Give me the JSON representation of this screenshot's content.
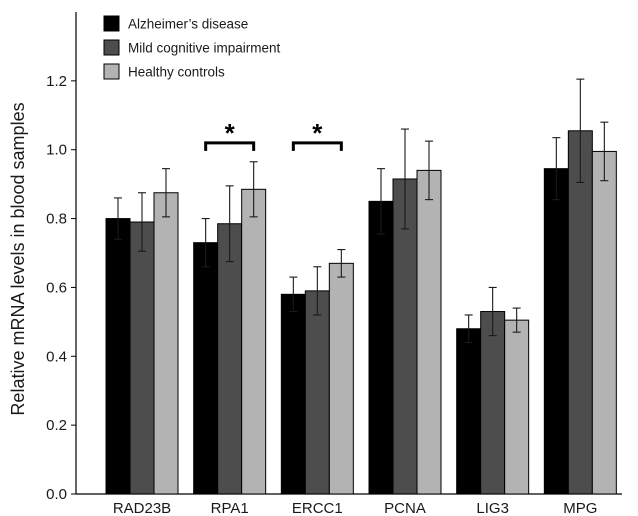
{
  "chart_data": {
    "type": "bar",
    "ylabel": "Relative mRNA levels in blood samples",
    "xlabel": "",
    "ylim": [
      0,
      1.35
    ],
    "yticks": [
      "0.0",
      "0.2",
      "0.4",
      "0.6",
      "0.8",
      "1.0",
      "1.2"
    ],
    "categories": [
      "RAD23B",
      "RPA1",
      "ERCC1",
      "PCNA",
      "LIG3",
      "MPG"
    ],
    "series": [
      {
        "name": "Alzheimer’s disease",
        "color": "#000000",
        "values": [
          0.8,
          0.73,
          0.58,
          0.85,
          0.48,
          0.945
        ],
        "errors": [
          0.06,
          0.07,
          0.05,
          0.095,
          0.04,
          0.09
        ]
      },
      {
        "name": "Mild cognitive impairment",
        "color": "#4d4d4d",
        "values": [
          0.79,
          0.785,
          0.59,
          0.915,
          0.53,
          1.055
        ],
        "errors": [
          0.085,
          0.11,
          0.07,
          0.145,
          0.07,
          0.15
        ]
      },
      {
        "name": "Healthy controls",
        "color": "#b3b3b3",
        "values": [
          0.875,
          0.885,
          0.67,
          0.94,
          0.505,
          0.995
        ],
        "errors": [
          0.07,
          0.08,
          0.04,
          0.085,
          0.035,
          0.085
        ]
      }
    ],
    "significance": [
      {
        "category": "RPA1",
        "from_series": 0,
        "to_series": 2,
        "label": "*",
        "y": 1.02
      },
      {
        "category": "ERCC1",
        "from_series": 0,
        "to_series": 2,
        "label": "*",
        "y": 1.02
      }
    ],
    "grid": false,
    "legend_position": "top-left"
  }
}
